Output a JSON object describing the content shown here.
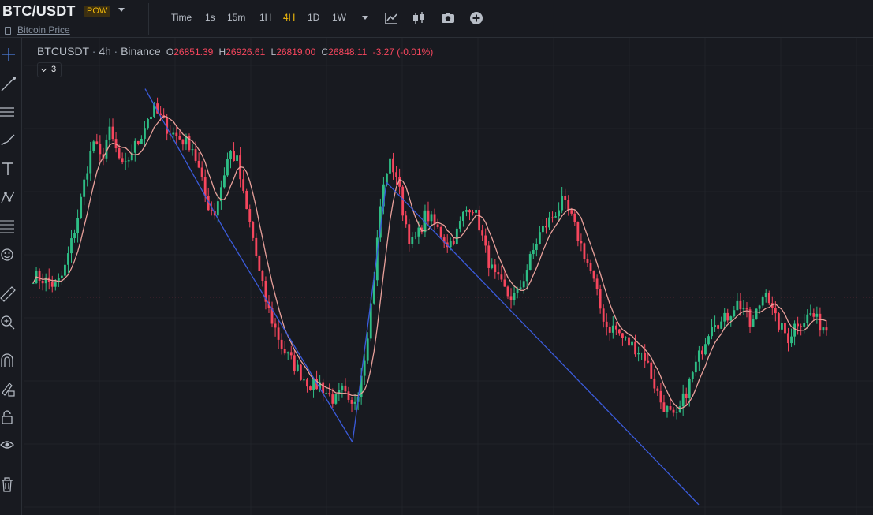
{
  "header": {
    "pair": "BTC/USDT",
    "tag": "POW",
    "link": "Bitcoin Price",
    "timeframes": [
      {
        "label": "Time",
        "active": false
      },
      {
        "label": "1s",
        "active": false
      },
      {
        "label": "15m",
        "active": false
      },
      {
        "label": "1H",
        "active": false
      },
      {
        "label": "4H",
        "active": true
      },
      {
        "label": "1D",
        "active": false
      },
      {
        "label": "1W",
        "active": false
      }
    ],
    "tools": [
      "indicators-icon",
      "chart-type-icon",
      "camera-icon",
      "add-icon"
    ]
  },
  "sidebar": {
    "tools": [
      "crosshair-icon",
      "trend-line-icon",
      "horizontal-lines-icon",
      "brush-icon",
      "text-icon",
      "pattern-icon",
      "fib-icon",
      "emoji-icon",
      "ruler-icon",
      "zoom-icon",
      "magnet-icon",
      "lock-drawing-icon",
      "lock-icon",
      "eye-icon",
      "trash-icon"
    ]
  },
  "legend": {
    "symbol": "BTCUSDT",
    "interval": "4h",
    "exchange": "Binance",
    "o_label": "O",
    "o": "26851.39",
    "h_label": "H",
    "h": "26926.61",
    "l_label": "L",
    "l": "26819.00",
    "c_label": "C",
    "c": "26848.11",
    "change": "-3.27 (-0.01%)",
    "indicator_count": "3"
  },
  "colors": {
    "up": "#2ebd85",
    "down": "#f6465d",
    "ma": "#e8a09a",
    "drawing": "#3b5bdb",
    "accent": "#f0b90b",
    "background": "#181a20"
  },
  "chart_data": {
    "type": "candlestick",
    "symbol": "BTCUSDT",
    "interval": "4h",
    "close_path": [
      26950,
      26940,
      26920,
      26900,
      26960,
      27100,
      27250,
      27450,
      27600,
      27500,
      27650,
      27550,
      27450,
      27550,
      27600,
      27700,
      27750,
      27700,
      27650,
      27620,
      27600,
      27580,
      27450,
      27300,
      27250,
      27400,
      27550,
      27500,
      27300,
      27150,
      26950,
      26800,
      26700,
      26600,
      26550,
      26500,
      26450,
      26420,
      26430,
      26380,
      26350,
      26400,
      26300,
      26400,
      26600,
      26900,
      27300,
      27500,
      27450,
      27250,
      27100,
      27150,
      27250,
      27200,
      27150,
      27100,
      27150,
      27250,
      27300,
      27200,
      27050,
      26950,
      26900,
      26850,
      26850,
      26950,
      27050,
      27150,
      27200,
      27250,
      27300,
      27250,
      27150,
      27050,
      26950,
      26800,
      26700,
      26700,
      26650,
      26620,
      26600,
      26560,
      26450,
      26350,
      26300,
      26250,
      26350,
      26450,
      26550,
      26650,
      26750,
      26720,
      26760,
      26820,
      26800,
      26700,
      26800,
      26900,
      26750,
      26700,
      26650,
      26730,
      26740,
      26770,
      26720,
      26700
    ],
    "last_price_line": 26848.11,
    "ma_series": "moving average of close (pink line)",
    "drawings": "trend lines (blue)"
  }
}
